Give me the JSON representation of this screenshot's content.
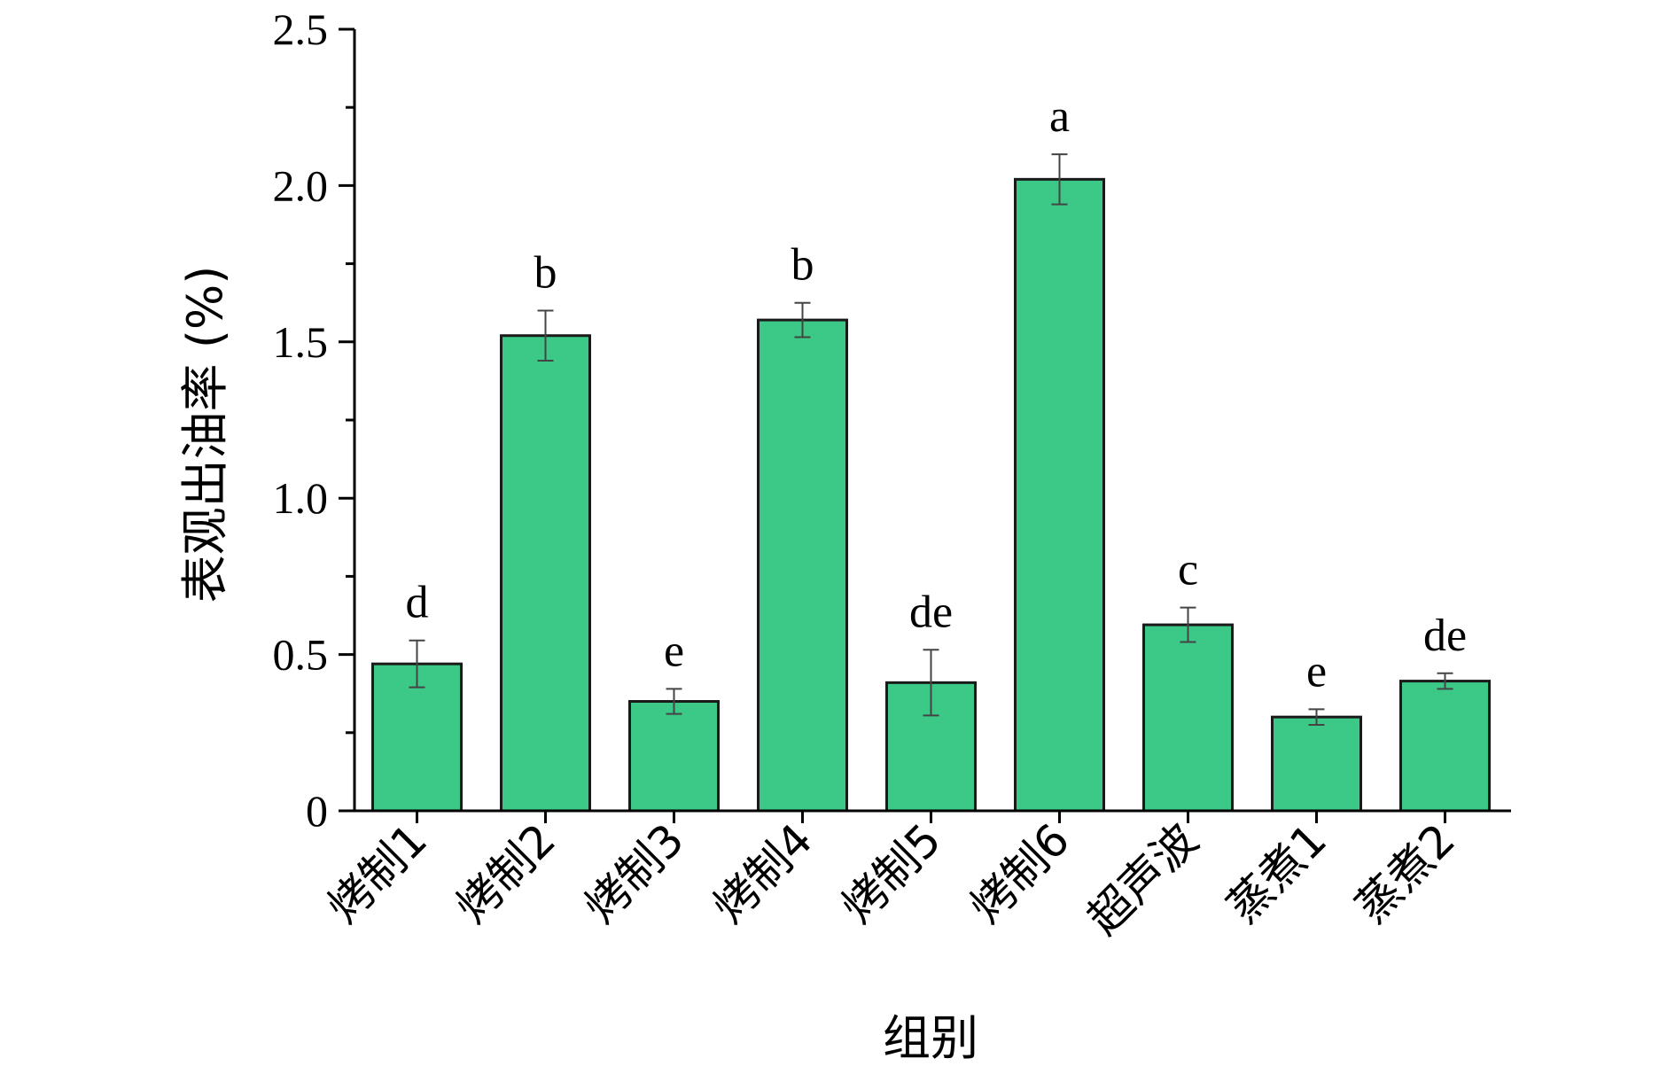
{
  "chart_data": {
    "type": "bar",
    "xlabel": "组别",
    "ylabel": "表观出油率 (%)",
    "ylim": [
      0,
      2.5
    ],
    "yticks": [
      "0",
      "0.5",
      "1.0",
      "1.5",
      "2.0",
      "2.5"
    ],
    "ytick_values": [
      0,
      0.5,
      1.0,
      1.5,
      2.0,
      2.5
    ],
    "categories": [
      "烤制1",
      "烤制2",
      "烤制3",
      "烤制4",
      "烤制5",
      "烤制6",
      "超声波",
      "蒸煮1",
      "蒸煮2"
    ],
    "values": [
      0.47,
      1.52,
      0.35,
      1.57,
      0.41,
      2.02,
      0.595,
      0.3,
      0.415
    ],
    "errors": [
      0.075,
      0.08,
      0.04,
      0.055,
      0.105,
      0.08,
      0.055,
      0.025,
      0.025
    ],
    "significance": [
      "d",
      "b",
      "e",
      "b",
      "de",
      "a",
      "c",
      "e",
      "de"
    ],
    "bar_color": "#3cc886",
    "grid": false,
    "legend": "none"
  }
}
